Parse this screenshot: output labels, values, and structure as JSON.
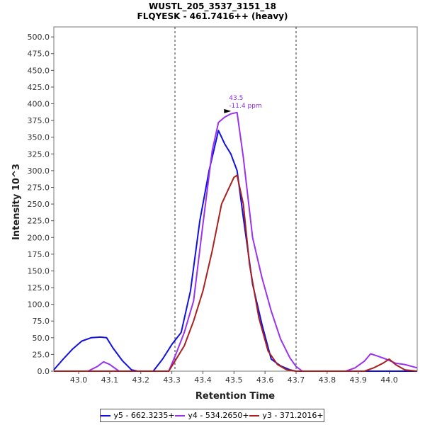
{
  "chart_data": {
    "type": "line",
    "title": "WUSTL_205_3537_3151_18",
    "subtitle": "FLQYESK - 461.7416++ (heavy)",
    "xlabel": "Retention Time",
    "ylabel": "Intensity 10^3",
    "xlim": [
      42.92,
      44.09
    ],
    "ylim": [
      0,
      515
    ],
    "xticks": [
      "43.0",
      "43.1",
      "43.2",
      "43.3",
      "43.4",
      "43.5",
      "43.6",
      "43.7",
      "43.8",
      "43.9",
      "44.0"
    ],
    "yticks": [
      "0.0",
      "25.0",
      "50.0",
      "75.0",
      "100.0",
      "125.0",
      "150.0",
      "175.0",
      "200.0",
      "225.0",
      "250.0",
      "275.0",
      "300.0",
      "325.0",
      "350.0",
      "375.0",
      "400.0",
      "425.0",
      "450.0",
      "475.0",
      "500.0"
    ],
    "grid": false,
    "legend_position": "bottom",
    "vlines": [
      43.31,
      43.7
    ],
    "annotation": {
      "x": 43.5,
      "y": 388,
      "line1": "43.5",
      "line2": "-11.4 ppm",
      "color": "#8a2be2"
    },
    "series": [
      {
        "name": "y5 - 662.3235+",
        "color": "#1010e0",
        "x": [
          42.92,
          42.95,
          42.98,
          43.01,
          43.04,
          43.07,
          43.09,
          43.11,
          43.14,
          43.17,
          43.19,
          43.22,
          43.24,
          43.27,
          43.3,
          43.33,
          43.36,
          43.39,
          43.42,
          43.45,
          43.47,
          43.49,
          43.51,
          43.53,
          43.56,
          43.59,
          43.62,
          43.65,
          43.68,
          43.7,
          43.8,
          43.9,
          44.0,
          44.09
        ],
        "y": [
          2,
          18,
          33,
          45,
          50,
          51,
          50,
          35,
          16,
          2,
          0,
          0,
          0,
          18,
          40,
          58,
          120,
          225,
          300,
          360,
          340,
          325,
          300,
          230,
          130,
          70,
          18,
          8,
          2,
          0,
          0,
          0,
          0,
          0
        ]
      },
      {
        "name": "y4 - 534.2650+",
        "color": "#9933ee",
        "x": [
          42.92,
          43.03,
          43.06,
          43.08,
          43.1,
          43.13,
          43.29,
          43.31,
          43.34,
          43.37,
          43.4,
          43.43,
          43.45,
          43.47,
          43.49,
          43.51,
          43.53,
          43.56,
          43.59,
          43.62,
          43.65,
          43.68,
          43.7,
          43.72,
          43.86,
          43.89,
          43.92,
          43.94,
          43.96,
          43.99,
          44.02,
          44.05,
          44.09
        ],
        "y": [
          0,
          0,
          7,
          14,
          10,
          0,
          0,
          22,
          58,
          105,
          220,
          330,
          372,
          380,
          385,
          387,
          320,
          200,
          140,
          90,
          48,
          20,
          7,
          0,
          0,
          5,
          15,
          26,
          23,
          18,
          12,
          10,
          5
        ]
      },
      {
        "name": "y3 - 371.2016+",
        "color": "#aa2020",
        "x": [
          42.92,
          43.29,
          43.31,
          43.34,
          43.37,
          43.4,
          43.43,
          43.46,
          43.48,
          43.5,
          43.51,
          43.53,
          43.55,
          43.58,
          43.61,
          43.64,
          43.67,
          43.7,
          43.72,
          43.92,
          43.95,
          43.98,
          44.0,
          44.02,
          44.05,
          44.09
        ],
        "y": [
          0,
          0,
          15,
          38,
          75,
          120,
          180,
          250,
          270,
          290,
          293,
          250,
          160,
          80,
          30,
          10,
          2,
          0,
          0,
          0,
          5,
          12,
          18,
          10,
          2,
          0
        ]
      }
    ]
  }
}
